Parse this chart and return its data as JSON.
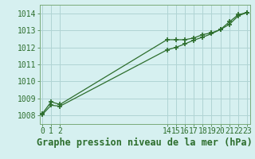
{
  "title": "Graphe pression niveau de la mer (hPa)",
  "background_color": "#d6f0f0",
  "grid_color": "#b0d4d4",
  "line_color": "#2d6e2d",
  "spine_color": "#7aaa7a",
  "xlim": [
    -0.3,
    23.3
  ],
  "ylim": [
    1007.5,
    1014.5
  ],
  "yticks": [
    1008,
    1009,
    1010,
    1011,
    1012,
    1013,
    1014
  ],
  "xticks": [
    0,
    1,
    2,
    14,
    15,
    16,
    17,
    18,
    19,
    20,
    21,
    22,
    23
  ],
  "series1_x": [
    0,
    1,
    2,
    14,
    15,
    16,
    17,
    18,
    19,
    20,
    21,
    22,
    23
  ],
  "series1_y": [
    1008.1,
    1008.8,
    1008.65,
    1012.45,
    1012.45,
    1012.45,
    1012.55,
    1012.75,
    1012.85,
    1013.05,
    1013.5,
    1013.92,
    1014.05
  ],
  "series2_x": [
    0,
    1,
    2,
    14,
    15,
    16,
    17,
    18,
    19,
    20,
    21,
    22,
    23
  ],
  "series2_y": [
    1008.05,
    1008.6,
    1008.55,
    1011.85,
    1012.0,
    1012.2,
    1012.42,
    1012.6,
    1012.8,
    1013.05,
    1013.35,
    1013.85,
    1014.05
  ],
  "title_fontsize": 8.5,
  "tick_fontsize": 7
}
